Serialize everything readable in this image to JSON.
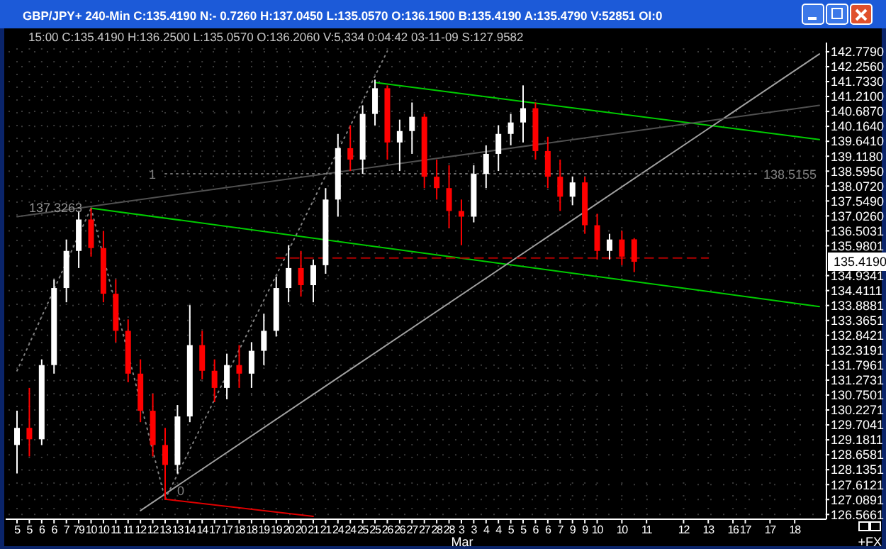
{
  "chart_data": {
    "type": "candlestick",
    "title": "GBP/JPY+ 240-Min C:135.4190 N:- 0.7260 H:137.0450 L:135.0570 O:136.1500 B:135.4190 A:135.4790 V:52851 OI:0",
    "subtitle": "15:00 C:135.4190 H:136.2500 L:135.0570 O:136.2060 V:5,334 0:04:42 03-11-09 S:127.9582",
    "categories": [
      "5",
      "5",
      "6",
      "6",
      "7",
      "79",
      "10",
      "10",
      "11",
      "11",
      "12",
      "12",
      "13",
      "13",
      "14",
      "14",
      "17",
      "17",
      "18",
      "18",
      "19",
      "19",
      "20",
      "20",
      "21",
      "21",
      "24",
      "24",
      "25",
      "25",
      "26",
      "26",
      "27",
      "27",
      "28",
      "28",
      "3",
      "3",
      "4",
      "4",
      "5",
      "5",
      "6",
      "6",
      "7",
      "9",
      "9",
      "10",
      null,
      "10",
      null,
      "11",
      null,
      null,
      "12",
      null,
      "13",
      null,
      "16",
      "17",
      null,
      "17",
      null,
      "18",
      null,
      null
    ],
    "ohlc": [
      [
        129.0,
        130.2,
        128.0,
        129.6
      ],
      [
        129.6,
        131.0,
        128.6,
        129.2
      ],
      [
        129.2,
        132.0,
        129.0,
        131.8
      ],
      [
        131.8,
        134.8,
        131.5,
        134.5
      ],
      [
        134.5,
        136.2,
        134.0,
        135.8
      ],
      [
        135.8,
        137.2,
        135.2,
        136.9
      ],
      [
        136.9,
        137.3,
        135.6,
        135.9
      ],
      [
        135.9,
        136.5,
        134.0,
        134.3
      ],
      [
        134.3,
        134.8,
        132.6,
        133.0
      ],
      [
        133.0,
        133.4,
        131.2,
        131.5
      ],
      [
        131.5,
        132.0,
        129.8,
        130.2
      ],
      [
        130.2,
        130.8,
        128.6,
        129.0
      ],
      [
        129.0,
        129.6,
        127.1,
        128.3
      ],
      [
        128.3,
        130.4,
        128.0,
        130.0
      ],
      [
        130.0,
        133.9,
        129.8,
        132.5
      ],
      [
        132.5,
        133.0,
        131.3,
        131.6
      ],
      [
        131.6,
        132.0,
        130.5,
        131.0
      ],
      [
        131.0,
        132.2,
        130.6,
        131.8
      ],
      [
        131.8,
        132.5,
        131.0,
        131.5
      ],
      [
        131.5,
        132.6,
        131.0,
        132.3
      ],
      [
        132.3,
        133.6,
        131.8,
        133.0
      ],
      [
        133.0,
        134.9,
        132.8,
        134.5
      ],
      [
        134.5,
        136.0,
        134.0,
        135.2
      ],
      [
        135.2,
        135.8,
        134.2,
        134.6
      ],
      [
        134.6,
        135.5,
        134.0,
        135.3
      ],
      [
        135.3,
        138.0,
        135.0,
        137.6
      ],
      [
        137.6,
        139.9,
        137.0,
        139.4
      ],
      [
        139.4,
        140.2,
        138.6,
        139.0
      ],
      [
        139.0,
        140.9,
        138.5,
        140.6
      ],
      [
        140.6,
        141.8,
        140.2,
        141.5
      ],
      [
        141.5,
        141.6,
        139.0,
        139.6
      ],
      [
        139.6,
        140.4,
        138.6,
        140.0
      ],
      [
        140.0,
        141.0,
        139.2,
        140.5
      ],
      [
        140.5,
        140.6,
        138.0,
        138.4
      ],
      [
        138.4,
        139.0,
        137.6,
        138.0
      ],
      [
        138.0,
        138.8,
        136.6,
        137.2
      ],
      [
        137.2,
        137.6,
        136.0,
        137.0
      ],
      [
        137.0,
        138.8,
        136.8,
        138.5
      ],
      [
        138.5,
        139.5,
        138.0,
        139.2
      ],
      [
        139.2,
        140.2,
        138.6,
        139.9
      ],
      [
        139.9,
        140.6,
        139.5,
        140.3
      ],
      [
        140.3,
        141.6,
        139.6,
        140.8
      ],
      [
        140.8,
        141.0,
        139.0,
        139.3
      ],
      [
        139.3,
        139.8,
        138.0,
        138.4
      ],
      [
        138.4,
        139.0,
        137.2,
        137.7
      ],
      [
        137.7,
        138.4,
        137.4,
        138.2
      ],
      [
        138.2,
        138.4,
        136.4,
        136.7
      ],
      [
        136.7,
        137.1,
        135.5,
        135.8
      ],
      [
        135.8,
        136.4,
        135.5,
        136.2
      ],
      [
        136.2,
        136.5,
        135.3,
        135.6
      ],
      [
        136.206,
        136.25,
        135.057,
        135.419
      ],
      null,
      null,
      null,
      null,
      null,
      null,
      null,
      null,
      null,
      null,
      null,
      null,
      null,
      null,
      null
    ],
    "colors": [
      "#ffffff",
      "#ff0000",
      "#ffffff",
      "#ffffff",
      "#ffffff",
      "#ffffff",
      "#ff0000",
      "#ff0000",
      "#ff0000",
      "#ff0000",
      "#ff0000",
      "#ff0000",
      "#ff0000",
      "#ffffff",
      "#ffffff",
      "#ff0000",
      "#ff0000",
      "#ffffff",
      "#ff0000",
      "#ffffff",
      "#ffffff",
      "#ffffff",
      "#ffffff",
      "#ff0000",
      "#ffffff",
      "#ffffff",
      "#ffffff",
      "#ff0000",
      "#ffffff",
      "#ffffff",
      "#ff0000",
      "#ffffff",
      "#ffffff",
      "#ff0000",
      "#ff0000",
      "#ff0000",
      "#ff0000",
      "#ffffff",
      "#ffffff",
      "#ffffff",
      "#ffffff",
      "#ffffff",
      "#ff0000",
      "#ff0000",
      "#ff0000",
      "#ffffff",
      "#ff0000",
      "#ff0000",
      "#ffffff",
      "#ff0000",
      "#ff0000",
      null,
      null,
      null,
      null,
      null,
      null,
      null,
      null,
      null,
      null,
      null,
      null,
      null,
      null,
      null
    ],
    "series": [
      {
        "type": "line",
        "color": "#00cc00",
        "line_style": "solid",
        "values": [
          null,
          null,
          null,
          null,
          null,
          null,
          null,
          null,
          null,
          null,
          null,
          null,
          null,
          null,
          null,
          null,
          null,
          null,
          null,
          null,
          null,
          null,
          null,
          null,
          null,
          null,
          null,
          null,
          null,
          141.7,
          null,
          null,
          null,
          null,
          null,
          null,
          null,
          null,
          null,
          null,
          null,
          null,
          null,
          null,
          null,
          null,
          null,
          null,
          null,
          null,
          null,
          null,
          null,
          null,
          null,
          null,
          null,
          null,
          null,
          null,
          null,
          null,
          null,
          null,
          null,
          139.7
        ]
      },
      {
        "type": "line",
        "color": "#00cc00",
        "line_style": "solid",
        "values": [
          null,
          null,
          null,
          null,
          null,
          null,
          137.3,
          null,
          null,
          null,
          null,
          null,
          null,
          null,
          null,
          null,
          null,
          null,
          null,
          null,
          null,
          null,
          null,
          null,
          null,
          null,
          null,
          null,
          null,
          null,
          null,
          null,
          null,
          null,
          null,
          null,
          null,
          null,
          null,
          null,
          null,
          null,
          null,
          null,
          null,
          null,
          null,
          null,
          null,
          null,
          null,
          null,
          null,
          null,
          null,
          null,
          null,
          null,
          null,
          null,
          null,
          null,
          null,
          null,
          null,
          133.85
        ]
      },
      {
        "type": "line",
        "color": "#a0a0a0",
        "line_style": "solid",
        "values": [
          null,
          null,
          null,
          null,
          null,
          null,
          null,
          null,
          null,
          null,
          126.7,
          null,
          null,
          null,
          null,
          null,
          null,
          null,
          null,
          null,
          null,
          null,
          null,
          null,
          null,
          null,
          null,
          null,
          null,
          null,
          null,
          null,
          null,
          null,
          null,
          null,
          null,
          null,
          null,
          null,
          null,
          null,
          null,
          null,
          null,
          null,
          null,
          null,
          null,
          null,
          null,
          null,
          null,
          null,
          null,
          null,
          null,
          null,
          null,
          null,
          null,
          null,
          null,
          null,
          null,
          142.7
        ]
      },
      {
        "type": "line",
        "color": "#505050",
        "line_style": "solid",
        "values": [
          137.0,
          null,
          null,
          null,
          null,
          null,
          null,
          null,
          null,
          null,
          null,
          null,
          null,
          null,
          null,
          null,
          null,
          null,
          null,
          null,
          null,
          null,
          null,
          null,
          null,
          null,
          null,
          null,
          null,
          null,
          null,
          null,
          null,
          null,
          null,
          null,
          null,
          null,
          null,
          null,
          null,
          null,
          null,
          null,
          null,
          null,
          null,
          null,
          null,
          null,
          null,
          null,
          null,
          null,
          null,
          null,
          null,
          null,
          null,
          null,
          null,
          null,
          null,
          null,
          null,
          140.9
        ]
      },
      {
        "type": "line",
        "color": "#808080",
        "line_style": "dotted",
        "values": [
          131.6,
          null,
          null,
          null,
          null,
          null,
          137.3,
          null,
          null,
          null,
          null,
          null,
          null,
          null,
          null,
          null,
          null,
          null,
          null,
          null,
          null,
          null,
          null,
          null,
          null,
          null,
          null,
          null,
          null,
          null,
          null,
          null,
          null,
          null,
          null,
          null,
          null,
          null,
          null,
          null,
          null,
          null,
          null,
          null,
          null,
          null,
          null,
          null,
          null,
          null,
          null,
          null,
          null,
          null,
          null,
          null,
          null,
          null,
          null,
          null,
          null,
          null,
          null,
          null,
          null,
          null
        ]
      },
      {
        "type": "line",
        "color": "#808080",
        "line_style": "dotted",
        "values": [
          null,
          null,
          null,
          null,
          null,
          null,
          137.3,
          null,
          null,
          null,
          null,
          null,
          127.1,
          null,
          null,
          null,
          null,
          null,
          null,
          null,
          null,
          null,
          null,
          null,
          null,
          null,
          null,
          null,
          null,
          null,
          null,
          null,
          null,
          null,
          null,
          null,
          null,
          null,
          null,
          null,
          null,
          null,
          null,
          null,
          null,
          null,
          null,
          null,
          null,
          null,
          null,
          null,
          null,
          null,
          null,
          null,
          null,
          null,
          null,
          null,
          null,
          null,
          null,
          null,
          null,
          null
        ]
      },
      {
        "type": "line",
        "color": "#808080",
        "line_style": "dotted",
        "values": [
          null,
          null,
          null,
          null,
          null,
          null,
          null,
          null,
          null,
          null,
          null,
          null,
          127.1,
          null,
          null,
          null,
          null,
          null,
          null,
          null,
          null,
          null,
          null,
          null,
          null,
          null,
          null,
          null,
          null,
          null,
          142.8,
          null,
          null,
          null,
          null,
          null,
          null,
          null,
          null,
          null,
          null,
          null,
          null,
          null,
          null,
          null,
          null,
          null,
          null,
          null,
          null,
          null,
          null,
          null,
          null,
          null,
          null,
          null,
          null,
          null,
          null,
          null,
          null,
          null,
          null,
          null
        ]
      },
      {
        "type": "line",
        "color": "#e00000",
        "line_style": "solid",
        "values": [
          null,
          null,
          null,
          null,
          null,
          null,
          null,
          null,
          null,
          null,
          null,
          null,
          127.1,
          null,
          null,
          null,
          null,
          null,
          null,
          null,
          null,
          null,
          null,
          null,
          126.5,
          null,
          null,
          null,
          null,
          null,
          null,
          null,
          null,
          null,
          null,
          null,
          null,
          null,
          null,
          null,
          null,
          null,
          null,
          null,
          null,
          null,
          null,
          null,
          null,
          null,
          null,
          null,
          null,
          null,
          null,
          null,
          null,
          null,
          null,
          null,
          null,
          null,
          null,
          null,
          null,
          null
        ]
      },
      {
        "type": "line",
        "color": "#b00000",
        "line_style": "dashed",
        "values": [
          null,
          null,
          null,
          null,
          null,
          null,
          null,
          null,
          null,
          null,
          null,
          null,
          null,
          null,
          null,
          null,
          null,
          null,
          null,
          null,
          null,
          135.55,
          null,
          null,
          null,
          null,
          null,
          null,
          null,
          null,
          null,
          null,
          null,
          null,
          null,
          null,
          null,
          null,
          null,
          null,
          null,
          null,
          null,
          null,
          null,
          null,
          null,
          null,
          null,
          null,
          null,
          null,
          null,
          null,
          null,
          null,
          135.55,
          null,
          null,
          null,
          null,
          null,
          null,
          null,
          null,
          null
        ]
      },
      {
        "type": "line",
        "color": "#707070",
        "line_style": "dotted",
        "values": [
          null,
          null,
          null,
          null,
          null,
          null,
          null,
          null,
          null,
          null,
          null,
          null,
          138.5,
          null,
          null,
          null,
          null,
          null,
          null,
          null,
          null,
          null,
          null,
          null,
          null,
          null,
          null,
          null,
          null,
          null,
          null,
          null,
          null,
          null,
          null,
          null,
          null,
          null,
          null,
          null,
          null,
          null,
          null,
          null,
          null,
          null,
          null,
          null,
          null,
          null,
          null,
          null,
          null,
          null,
          null,
          null,
          null,
          null,
          null,
          null,
          138.5,
          null,
          null,
          null,
          null,
          null
        ]
      }
    ],
    "ylim": [
      126.4,
      143.1
    ],
    "yticks": [
      {
        "value": 142.779,
        "label": "142.7790"
      },
      {
        "value": 142.256,
        "label": "142.2560"
      },
      {
        "value": 141.733,
        "label": "141.7330"
      },
      {
        "value": 141.21,
        "label": "141.2100"
      },
      {
        "value": 140.687,
        "label": "140.6870"
      },
      {
        "value": 140.164,
        "label": "140.1640"
      },
      {
        "value": 139.641,
        "label": "139.6410"
      },
      {
        "value": 139.118,
        "label": "139.1180"
      },
      {
        "value": 138.595,
        "label": "138.5950"
      },
      {
        "value": 138.072,
        "label": "138.0720"
      },
      {
        "value": 137.549,
        "label": "137.5490"
      },
      {
        "value": 137.026,
        "label": "137.0260"
      },
      {
        "value": 136.5031,
        "label": "136.5031"
      },
      {
        "value": 135.9801,
        "label": "135.9801"
      },
      {
        "value": 134.9341,
        "label": "134.9341"
      },
      {
        "value": 134.4111,
        "label": "134.4111"
      },
      {
        "value": 133.8881,
        "label": "133.8881"
      },
      {
        "value": 133.3651,
        "label": "133.3651"
      },
      {
        "value": 132.8421,
        "label": "132.8421"
      },
      {
        "value": 132.3191,
        "label": "132.3191"
      },
      {
        "value": 131.7961,
        "label": "131.7961"
      },
      {
        "value": 131.2731,
        "label": "131.2731"
      },
      {
        "value": 130.7501,
        "label": "130.7501"
      },
      {
        "value": 130.2271,
        "label": "130.2271"
      },
      {
        "value": 129.7041,
        "label": "129.7041"
      },
      {
        "value": 129.1811,
        "label": "129.1811"
      },
      {
        "value": 128.6581,
        "label": "128.6581"
      },
      {
        "value": 128.1351,
        "label": "128.1351"
      },
      {
        "value": 127.6121,
        "label": "127.6121"
      },
      {
        "value": 127.0891,
        "label": "127.0891"
      },
      {
        "value": 126.5661,
        "label": "126.5661"
      }
    ],
    "grid": true,
    "annotations": [
      {
        "text": "137.3263",
        "y": 137.3263
      },
      "138.5155",
      "1",
      {
        "text": "0",
        "y": 127.1
      },
      "135.4190",
      "Mar",
      "+FX"
    ]
  }
}
